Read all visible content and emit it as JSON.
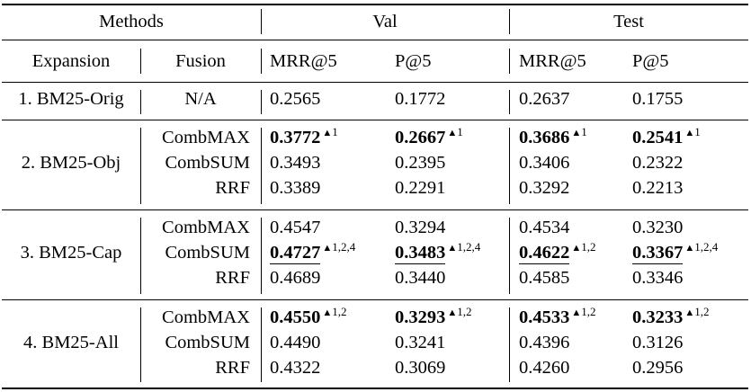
{
  "header": {
    "methods": "Methods",
    "val": "Val",
    "test": "Test",
    "expansion": "Expansion",
    "fusion": "Fusion",
    "metrics": [
      "MRR@5",
      "P@5",
      "MRR@5",
      "P@5"
    ]
  },
  "sup_marker": "▲",
  "groups": [
    {
      "expansion": "1. BM25-Orig",
      "rows": [
        {
          "fusion": "N/A",
          "cells": [
            {
              "v": "0.2565"
            },
            {
              "v": "0.1772"
            },
            {
              "v": "0.2637"
            },
            {
              "v": "0.1755"
            }
          ]
        }
      ]
    },
    {
      "expansion": "2. BM25-Obj",
      "rows": [
        {
          "fusion": "CombMAX",
          "cells": [
            {
              "v": "0.3772",
              "bold": true,
              "sup": "1"
            },
            {
              "v": "0.2667",
              "bold": true,
              "sup": "1"
            },
            {
              "v": "0.3686",
              "bold": true,
              "sup": "1"
            },
            {
              "v": "0.2541",
              "bold": true,
              "sup": "1"
            }
          ]
        },
        {
          "fusion": "CombSUM",
          "cells": [
            {
              "v": "0.3493"
            },
            {
              "v": "0.2395"
            },
            {
              "v": "0.3406"
            },
            {
              "v": "0.2322"
            }
          ]
        },
        {
          "fusion": "RRF",
          "cells": [
            {
              "v": "0.3389"
            },
            {
              "v": "0.2291"
            },
            {
              "v": "0.3292"
            },
            {
              "v": "0.2213"
            }
          ]
        }
      ]
    },
    {
      "expansion": "3. BM25-Cap",
      "rows": [
        {
          "fusion": "CombMAX",
          "cells": [
            {
              "v": "0.4547"
            },
            {
              "v": "0.3294"
            },
            {
              "v": "0.4534"
            },
            {
              "v": "0.3230"
            }
          ]
        },
        {
          "fusion": "CombSUM",
          "cells": [
            {
              "v": "0.4727",
              "bold": true,
              "underline": true,
              "sup": "1,2,4"
            },
            {
              "v": "0.3483",
              "bold": true,
              "underline": true,
              "sup": "1,2,4"
            },
            {
              "v": "0.4622",
              "bold": true,
              "underline": true,
              "sup": "1,2"
            },
            {
              "v": "0.3367",
              "bold": true,
              "underline": true,
              "sup": "1,2,4"
            }
          ]
        },
        {
          "fusion": "RRF",
          "cells": [
            {
              "v": "0.4689"
            },
            {
              "v": "0.3440"
            },
            {
              "v": "0.4585"
            },
            {
              "v": "0.3346"
            }
          ]
        }
      ]
    },
    {
      "expansion": "4. BM25-All",
      "rows": [
        {
          "fusion": "CombMAX",
          "cells": [
            {
              "v": "0.4550",
              "bold": true,
              "sup": "1,2"
            },
            {
              "v": "0.3293",
              "bold": true,
              "sup": "1,2"
            },
            {
              "v": "0.4533",
              "bold": true,
              "sup": "1,2"
            },
            {
              "v": "0.3233",
              "bold": true,
              "sup": "1,2"
            }
          ]
        },
        {
          "fusion": "CombSUM",
          "cells": [
            {
              "v": "0.4490"
            },
            {
              "v": "0.3241"
            },
            {
              "v": "0.4396"
            },
            {
              "v": "0.3126"
            }
          ]
        },
        {
          "fusion": "RRF",
          "cells": [
            {
              "v": "0.4322"
            },
            {
              "v": "0.3069"
            },
            {
              "v": "0.4260"
            },
            {
              "v": "0.2956"
            }
          ]
        }
      ]
    }
  ]
}
